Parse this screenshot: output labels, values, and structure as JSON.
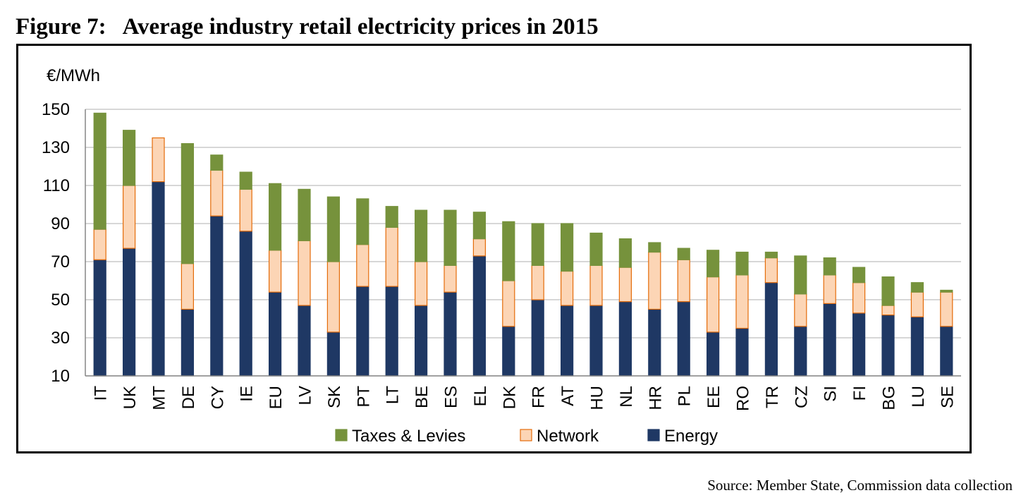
{
  "figure": {
    "label": "Figure 7:",
    "title": "Average industry retail electricity prices in 2015"
  },
  "source": "Source: Member State, Commission data collection",
  "colors": {
    "taxes": "#76923c",
    "network": "#fcd5b5",
    "network_border": "#e46c0a",
    "energy": "#1f3864",
    "grid": "#bfbfbf"
  },
  "chart_data": {
    "type": "bar",
    "stacked": true,
    "title": "",
    "ylabel": "€/MWh",
    "xlabel": "",
    "ylim": [
      10,
      150
    ],
    "yticks": [
      10,
      30,
      50,
      70,
      90,
      110,
      130,
      150
    ],
    "grid": true,
    "legend_position": "bottom",
    "legend_order": [
      "Taxes & Levies",
      "Network",
      "Energy"
    ],
    "categories": [
      "IT",
      "UK",
      "MT",
      "DE",
      "CY",
      "IE",
      "EU",
      "LV",
      "SK",
      "PT",
      "LT",
      "BE",
      "ES",
      "EL",
      "DK",
      "FR",
      "AT",
      "HU",
      "NL",
      "HR",
      "PL",
      "EE",
      "RO",
      "TR",
      "CZ",
      "SI",
      "FI",
      "BG",
      "LU",
      "SE"
    ],
    "series": [
      {
        "name": "Energy",
        "color": "#1f3864",
        "values": [
          71,
          77,
          112,
          45,
          94,
          86,
          54,
          47,
          33,
          57,
          57,
          47,
          54,
          73,
          36,
          50,
          47,
          47,
          49,
          45,
          49,
          33,
          35,
          59,
          36,
          48,
          43,
          42,
          41,
          36
        ]
      },
      {
        "name": "Network",
        "color": "#fcd5b5",
        "values": [
          16,
          33,
          23,
          24,
          24,
          22,
          22,
          34,
          37,
          22,
          31,
          23,
          14,
          9,
          24,
          18,
          18,
          21,
          18,
          30,
          22,
          29,
          28,
          13,
          17,
          15,
          16,
          5,
          13,
          18
        ]
      },
      {
        "name": "Taxes & Levies",
        "color": "#76923c",
        "values": [
          61,
          29,
          0,
          63,
          8,
          9,
          35,
          27,
          34,
          24,
          11,
          27,
          29,
          14,
          31,
          22,
          25,
          17,
          15,
          5,
          6,
          14,
          12,
          3,
          20,
          9,
          8,
          15,
          5,
          1
        ]
      }
    ]
  }
}
